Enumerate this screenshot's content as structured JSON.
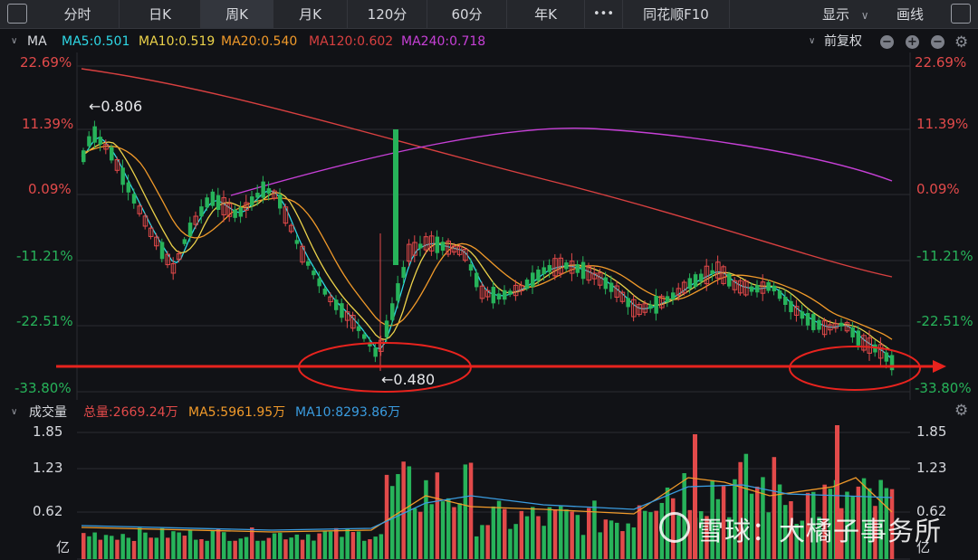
{
  "toolbar": {
    "tabs": [
      {
        "label": "分时"
      },
      {
        "label": "日K"
      },
      {
        "label": "周K"
      },
      {
        "label": "月K"
      },
      {
        "label": "120分"
      },
      {
        "label": "60分"
      },
      {
        "label": "年K"
      },
      {
        "label": "•••"
      },
      {
        "label": "同花顺F10"
      }
    ],
    "active_tab": "周K",
    "display_label": "显示",
    "draw_label": "画线"
  },
  "ma_indicator": {
    "name": "MA",
    "items": [
      {
        "label": "MA5:0.501",
        "color": "#2ed8e6"
      },
      {
        "label": "MA10:0.519",
        "color": "#ecd24a"
      },
      {
        "label": "MA20:0.540",
        "color": "#f19a2a"
      },
      {
        "label": "MA120:0.602",
        "color": "#d84040"
      },
      {
        "label": "MA240:0.718",
        "color": "#c640d6"
      }
    ],
    "adjust_label": "前复权"
  },
  "price_axis": {
    "labels": [
      "22.69%",
      "11.39%",
      "0.09%",
      "-11.21%",
      "-22.51%",
      "-33.80%"
    ]
  },
  "annotations": {
    "high": "←0.806",
    "low": "←0.480"
  },
  "volume": {
    "title": "成交量",
    "total": "总量:2669.24万",
    "ma5": "MA5:5961.95万",
    "ma10": "MA10:8293.86万",
    "axis_labels": [
      "1.85",
      "1.23",
      "0.62",
      "亿"
    ]
  },
  "watermark": "雪球：大橘子事务所",
  "colors": {
    "up": "#e24a4a",
    "down": "#27b35a",
    "positive_axis": "#e24a4a",
    "negative_axis": "#27b35a",
    "support_line": "#e8231e"
  }
}
